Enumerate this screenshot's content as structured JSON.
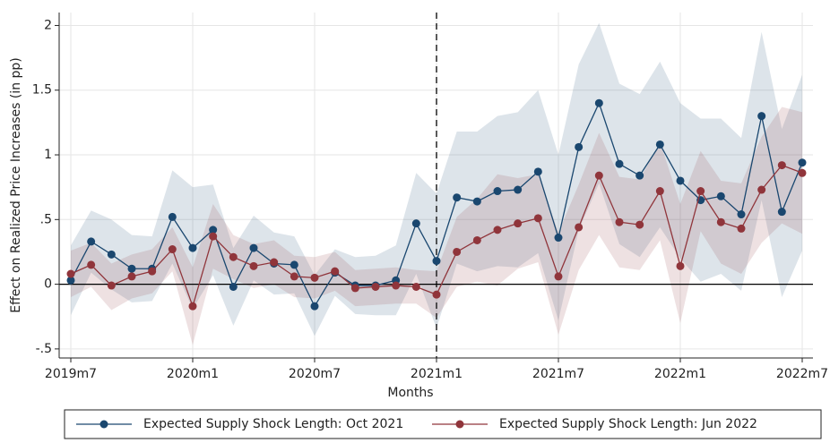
{
  "chart_data": {
    "type": "line",
    "x_label": "Months",
    "y_label": "Effect on Realized Price Increases (in pp)",
    "categories": [
      "2019m7",
      null,
      null,
      null,
      null,
      null,
      "2020m1",
      null,
      null,
      null,
      null,
      null,
      "2020m7",
      null,
      null,
      null,
      null,
      null,
      "2021m1",
      null,
      null,
      null,
      null,
      null,
      "2021m7",
      null,
      null,
      null,
      null,
      null,
      "2022m1",
      null,
      null,
      null,
      null,
      null,
      "2022m7"
    ],
    "ylim": [
      -0.57,
      2.1
    ],
    "yticks": [
      {
        "value": -0.5,
        "label": "-.5"
      },
      0,
      {
        "value": 0.5,
        "label": ".5"
      },
      1,
      1.5,
      2
    ],
    "grid": true,
    "reference_line_x": "2021m1",
    "reference_line_y": 0,
    "legend_position": "bottom",
    "series": [
      {
        "name": "Expected Supply Shock Length: Oct 2021",
        "color": "#1a476f",
        "values": [
          0.03,
          0.33,
          0.23,
          0.12,
          0.12,
          0.52,
          0.28,
          0.42,
          -0.02,
          0.28,
          0.16,
          0.15,
          -0.17,
          0.09,
          -0.01,
          -0.01,
          0.03,
          0.47,
          0.18,
          0.67,
          0.64,
          0.72,
          0.73,
          0.87,
          0.36,
          1.06,
          1.4,
          0.93,
          0.84,
          1.08,
          0.8,
          0.65,
          0.68,
          0.54,
          1.3,
          0.56,
          0.94
        ],
        "upper": [
          0.3,
          0.57,
          0.5,
          0.38,
          0.37,
          0.88,
          0.75,
          0.77,
          0.28,
          0.53,
          0.4,
          0.37,
          0.07,
          0.27,
          0.21,
          0.22,
          0.3,
          0.86,
          0.7,
          1.18,
          1.18,
          1.3,
          1.33,
          1.5,
          1.0,
          1.7,
          2.02,
          1.55,
          1.47,
          1.72,
          1.4,
          1.28,
          1.28,
          1.13,
          1.95,
          1.2,
          1.62
        ],
        "lower": [
          -0.24,
          0.09,
          -0.04,
          -0.14,
          -0.13,
          0.16,
          -0.19,
          0.07,
          -0.32,
          0.03,
          -0.08,
          -0.07,
          -0.4,
          -0.09,
          -0.23,
          -0.24,
          -0.24,
          0.08,
          -0.34,
          0.16,
          0.1,
          0.14,
          0.13,
          0.24,
          -0.28,
          0.42,
          0.78,
          0.31,
          0.21,
          0.44,
          0.2,
          0.02,
          0.08,
          -0.05,
          0.65,
          -0.1,
          0.26
        ]
      },
      {
        "name": "Expected Supply Shock Length: Jun 2022",
        "color": "#90353b",
        "values": [
          0.08,
          0.15,
          -0.01,
          0.06,
          0.1,
          0.27,
          -0.17,
          0.37,
          0.21,
          0.14,
          0.17,
          0.06,
          0.05,
          0.1,
          -0.03,
          -0.02,
          -0.01,
          -0.02,
          -0.08,
          0.25,
          0.34,
          0.42,
          0.47,
          0.51,
          0.06,
          0.44,
          0.84,
          0.48,
          0.46,
          0.72,
          0.14,
          0.72,
          0.48,
          0.43,
          0.73,
          0.92,
          0.86
        ],
        "upper": [
          0.26,
          0.32,
          0.16,
          0.23,
          0.27,
          0.44,
          0.13,
          0.62,
          0.38,
          0.31,
          0.34,
          0.22,
          0.21,
          0.25,
          0.11,
          0.12,
          0.13,
          0.11,
          0.1,
          0.52,
          0.66,
          0.85,
          0.82,
          0.85,
          0.4,
          0.77,
          1.17,
          0.83,
          0.81,
          1.1,
          0.62,
          1.03,
          0.8,
          0.78,
          1.14,
          1.37,
          1.33
        ],
        "lower": [
          -0.1,
          -0.02,
          -0.2,
          -0.11,
          -0.07,
          0.1,
          -0.47,
          0.12,
          0.04,
          -0.03,
          0.0,
          -0.1,
          -0.11,
          -0.05,
          -0.17,
          -0.16,
          -0.15,
          -0.15,
          -0.26,
          -0.02,
          0.02,
          -0.01,
          0.12,
          0.17,
          -0.39,
          0.11,
          0.38,
          0.13,
          0.11,
          0.34,
          -0.3,
          0.41,
          0.16,
          0.08,
          0.32,
          0.47,
          0.39
        ]
      }
    ]
  }
}
